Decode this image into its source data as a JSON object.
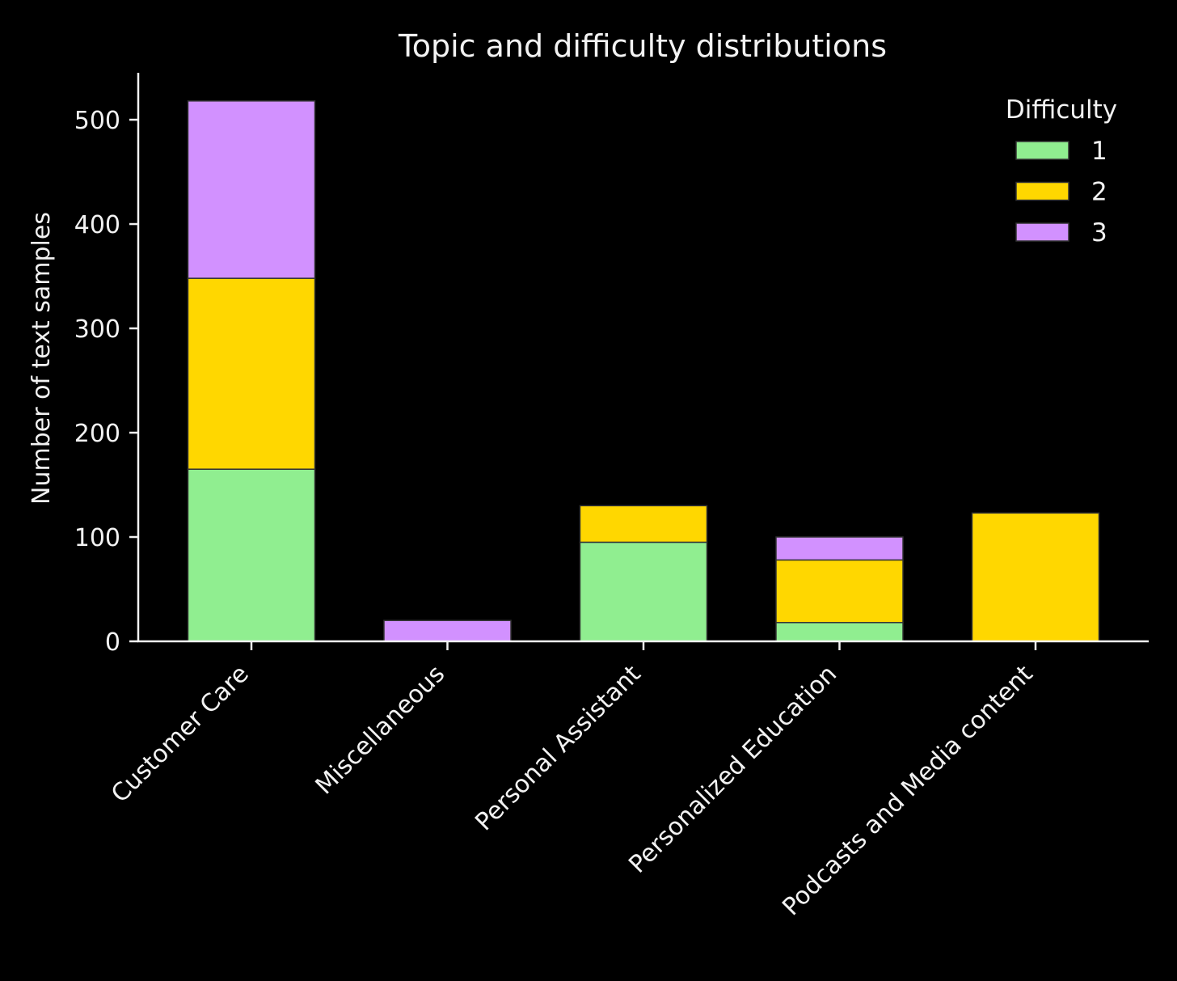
{
  "chart_data": {
    "type": "bar",
    "stacked": true,
    "title": "Topic and difficulty distributions",
    "xlabel": "",
    "ylabel": "Number of text samples",
    "ylim": [
      0,
      545
    ],
    "yticks": [
      0,
      100,
      200,
      300,
      400,
      500
    ],
    "categories": [
      "Customer Care",
      "Miscellaneous",
      "Personal Assistant",
      "Personalized Education",
      "Podcasts and Media content"
    ],
    "series": [
      {
        "name": "1",
        "color": "#90ee90",
        "values": [
          165,
          0,
          95,
          18,
          0
        ]
      },
      {
        "name": "2",
        "color": "#ffd700",
        "values": [
          183,
          0,
          35,
          60,
          123
        ]
      },
      {
        "name": "3",
        "color": "#d291ff",
        "values": [
          170,
          20,
          0,
          22,
          0
        ]
      }
    ],
    "legend": {
      "title": "Difficulty",
      "position": "top-right"
    },
    "grid": false,
    "colors": {
      "background": "#000000",
      "axis": "#f2f2f2",
      "bar_edge": "#333333"
    }
  }
}
